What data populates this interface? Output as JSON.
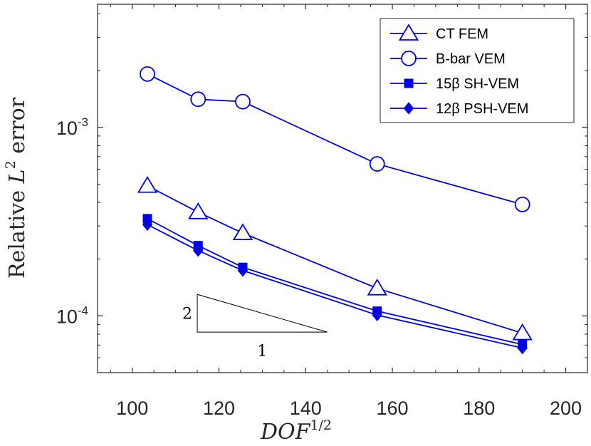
{
  "chart_data": {
    "type": "line",
    "xscale": "linear",
    "yscale": "log",
    "xlim": [
      92,
      205
    ],
    "ylim": [
      5e-05,
      0.0045
    ],
    "x_ticks": [
      100,
      120,
      140,
      160,
      180,
      200
    ],
    "y_ticks": [
      {
        "value": 0.001,
        "base": "10",
        "exp": "-3"
      },
      {
        "value": 0.0001,
        "base": "10",
        "exp": "-4"
      }
    ],
    "xlabel": {
      "base": "DOF",
      "sup": "1/2"
    },
    "ylabel": {
      "prefix": "Relative ",
      "var": "L",
      "sup": "2",
      "suffix": " error"
    },
    "grid": false,
    "legend_position": "top-right",
    "series": [
      {
        "name": "CT FEM",
        "marker": "triangle-open",
        "color": "#0000e6",
        "x": [
          103.5,
          115.2,
          125.5,
          156.5,
          190.0
        ],
        "y": [
          0.00049,
          0.000355,
          0.000275,
          0.00014,
          8.1e-05
        ]
      },
      {
        "name": "B-bar VEM",
        "marker": "circle-open",
        "color": "#0000e6",
        "x": [
          103.5,
          115.2,
          125.5,
          156.5,
          190.0
        ],
        "y": [
          0.00192,
          0.00141,
          0.00137,
          0.00064,
          0.00039
        ]
      },
      {
        "name": "15β SH-VEM",
        "marker": "square-filled",
        "color": "#0000e6",
        "x": [
          103.5,
          115.2,
          125.5,
          156.5,
          190.0
        ],
        "y": [
          0.000328,
          0.000236,
          0.000181,
          0.000106,
          7.05e-05
        ]
      },
      {
        "name": "12β PSH-VEM",
        "marker": "diamond-filled",
        "color": "#0000e6",
        "x": [
          103.5,
          115.2,
          125.5,
          156.5,
          190.0
        ],
        "y": [
          0.000305,
          0.000222,
          0.000174,
          0.000101,
          6.75e-05
        ]
      }
    ],
    "annotations": {
      "slope_triangle": {
        "x": [
          115,
          145
        ],
        "y": [
          8.2e-05,
          0.00013
        ],
        "rise_label": "2",
        "run_label": "1"
      }
    }
  }
}
